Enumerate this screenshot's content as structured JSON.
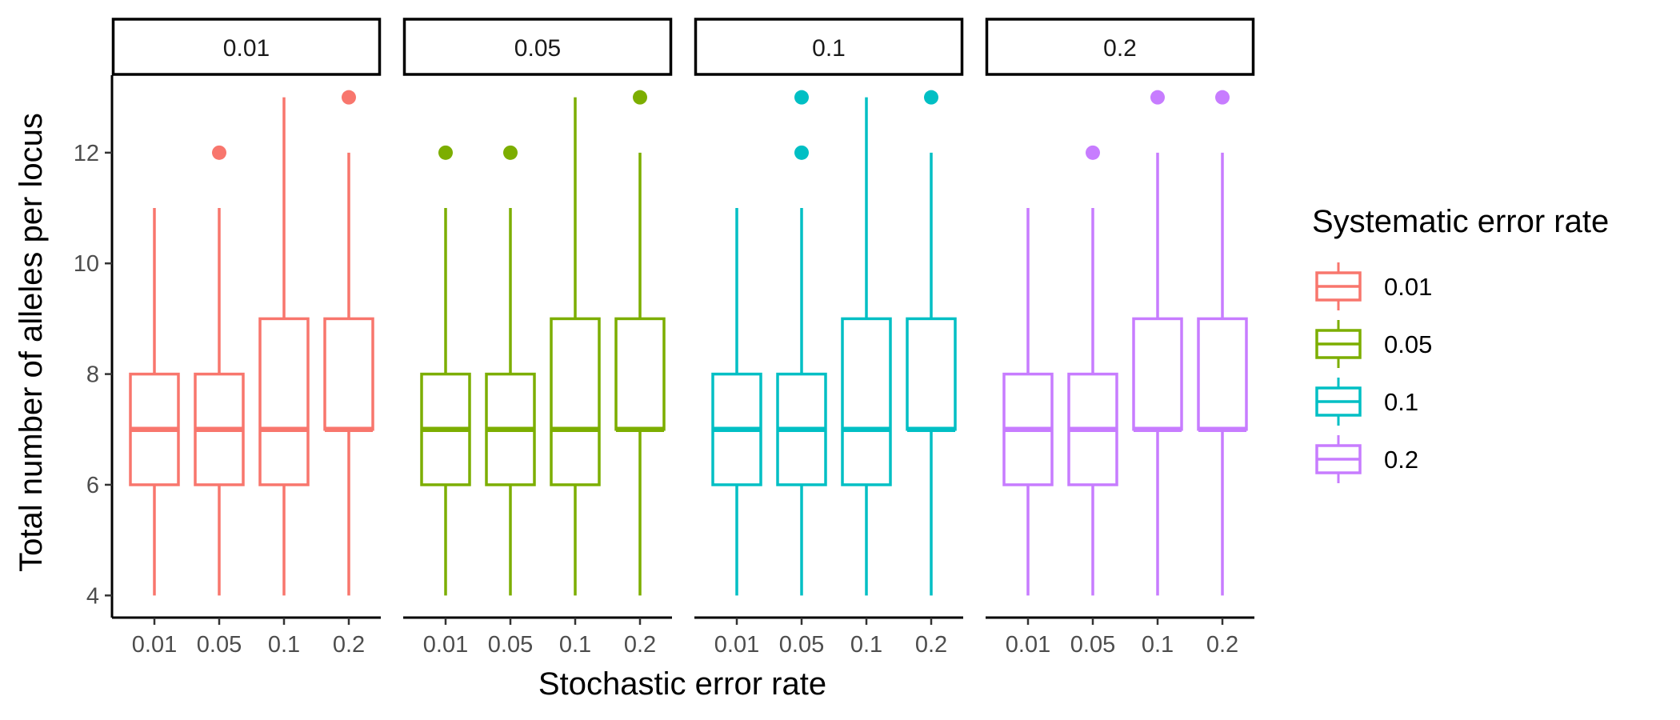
{
  "chart_data": {
    "type": "boxplot",
    "facet_variable_values": [
      "0.01",
      "0.05",
      "0.1",
      "0.2"
    ],
    "categories": [
      "0.01",
      "0.05",
      "0.1",
      "0.2"
    ],
    "xlabel": "Stochastic error rate",
    "ylabel": "Total number of alleles per locus",
    "ylim": [
      3.6,
      13.4
    ],
    "yticks": [
      4,
      6,
      8,
      10,
      12
    ],
    "grid": false,
    "legend": {
      "title": "Systematic error rate",
      "position": "right",
      "entries": [
        "0.01",
        "0.05",
        "0.1",
        "0.2"
      ]
    },
    "colors": [
      "#F8766D",
      "#7CAE00",
      "#00BFC4",
      "#C77CFF"
    ],
    "panels": [
      {
        "facet": "0.01",
        "boxes": [
          {
            "x": "0.01",
            "min": 4,
            "q1": 6,
            "median": 7,
            "q3": 8,
            "max": 11,
            "outliers": []
          },
          {
            "x": "0.05",
            "min": 4,
            "q1": 6,
            "median": 7,
            "q3": 8,
            "max": 11,
            "outliers": [
              12
            ]
          },
          {
            "x": "0.1",
            "min": 4,
            "q1": 6,
            "median": 7,
            "q3": 9,
            "max": 13,
            "outliers": []
          },
          {
            "x": "0.2",
            "min": 4,
            "q1": 7,
            "median": 7,
            "q3": 9,
            "max": 12,
            "outliers": [
              13
            ]
          }
        ]
      },
      {
        "facet": "0.05",
        "boxes": [
          {
            "x": "0.01",
            "min": 4,
            "q1": 6,
            "median": 7,
            "q3": 8,
            "max": 11,
            "outliers": [
              12
            ]
          },
          {
            "x": "0.05",
            "min": 4,
            "q1": 6,
            "median": 7,
            "q3": 8,
            "max": 11,
            "outliers": [
              12
            ]
          },
          {
            "x": "0.1",
            "min": 4,
            "q1": 6,
            "median": 7,
            "q3": 9,
            "max": 13,
            "outliers": []
          },
          {
            "x": "0.2",
            "min": 4,
            "q1": 7,
            "median": 7,
            "q3": 9,
            "max": 12,
            "outliers": [
              13
            ]
          }
        ]
      },
      {
        "facet": "0.1",
        "boxes": [
          {
            "x": "0.01",
            "min": 4,
            "q1": 6,
            "median": 7,
            "q3": 8,
            "max": 11,
            "outliers": []
          },
          {
            "x": "0.05",
            "min": 4,
            "q1": 6,
            "median": 7,
            "q3": 8,
            "max": 11,
            "outliers": [
              12,
              13
            ]
          },
          {
            "x": "0.1",
            "min": 4,
            "q1": 6,
            "median": 7,
            "q3": 9,
            "max": 13,
            "outliers": []
          },
          {
            "x": "0.2",
            "min": 4,
            "q1": 7,
            "median": 7,
            "q3": 9,
            "max": 12,
            "outliers": [
              13
            ]
          }
        ]
      },
      {
        "facet": "0.2",
        "boxes": [
          {
            "x": "0.01",
            "min": 4,
            "q1": 6,
            "median": 7,
            "q3": 8,
            "max": 11,
            "outliers": []
          },
          {
            "x": "0.05",
            "min": 4,
            "q1": 6,
            "median": 7,
            "q3": 8,
            "max": 11,
            "outliers": [
              12
            ]
          },
          {
            "x": "0.1",
            "min": 4,
            "q1": 7,
            "median": 7,
            "q3": 9,
            "max": 12,
            "outliers": [
              13
            ]
          },
          {
            "x": "0.2",
            "min": 4,
            "q1": 7,
            "median": 7,
            "q3": 9,
            "max": 12,
            "outliers": [
              13
            ]
          }
        ]
      }
    ]
  }
}
